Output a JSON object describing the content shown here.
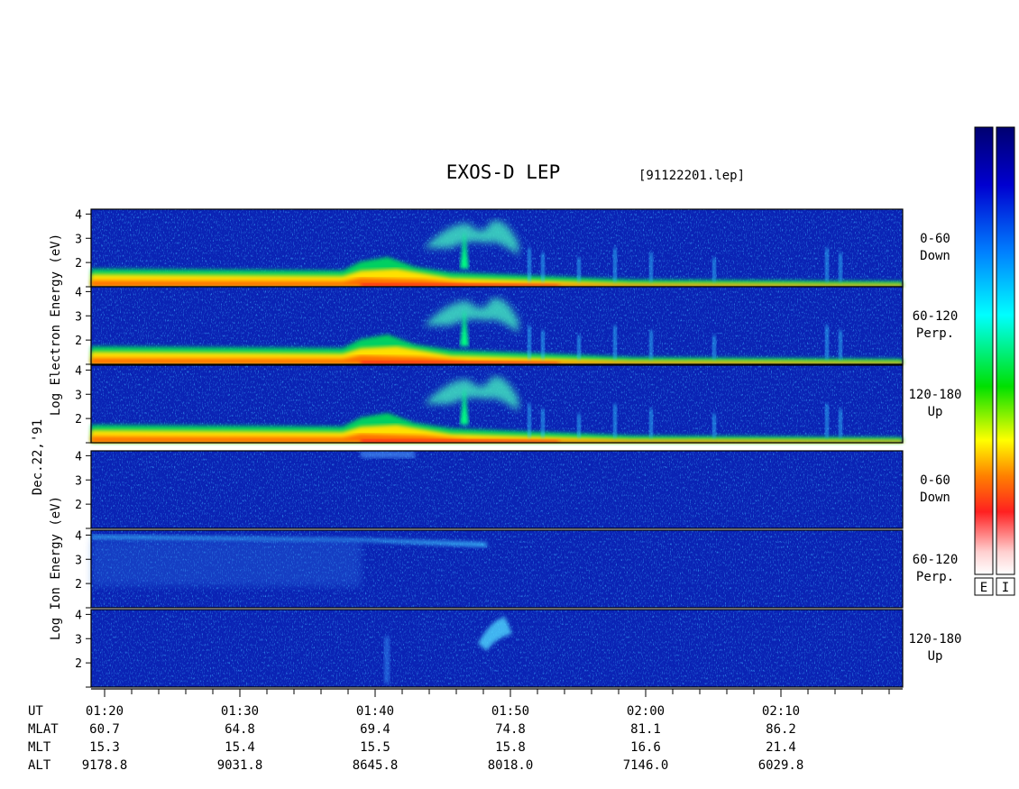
{
  "title": "EXOS-D LEP",
  "filename": "[91122201.lep]",
  "date_label": "Dec.22,'91",
  "colors": {
    "background": "#0a23b4",
    "colorbar_stops": [
      "#ffffff",
      "#ffd0d0",
      "#ff2020",
      "#ff8000",
      "#ffff00",
      "#00e000",
      "#00ffff",
      "#0080ff",
      "#0000d0",
      "#000070"
    ]
  },
  "colorbar": {
    "labels": [
      "E",
      "I"
    ]
  },
  "group_labels": {
    "electron": [
      "Log",
      "Electron",
      "Energy",
      "(eV)"
    ],
    "ion": [
      "Log",
      "Ion",
      "Energy",
      "(eV)"
    ]
  },
  "panels": [
    {
      "group": "electron",
      "species": "Electron",
      "pitch_angle": "0-60",
      "direction": "Down"
    },
    {
      "group": "electron",
      "species": "Electron",
      "pitch_angle": "60-120",
      "direction": "Perp."
    },
    {
      "group": "electron",
      "species": "Electron",
      "pitch_angle": "120-180",
      "direction": "Up"
    },
    {
      "group": "ion",
      "species": "Ion",
      "pitch_angle": "0-60",
      "direction": "Down"
    },
    {
      "group": "ion",
      "species": "Ion",
      "pitch_angle": "60-120",
      "direction": "Perp."
    },
    {
      "group": "ion",
      "species": "Ion",
      "pitch_angle": "120-180",
      "direction": "Up"
    }
  ],
  "axis_labels": {
    "rows": [
      "UT",
      "MLAT",
      "MLT",
      "ALT"
    ]
  },
  "chart_data": {
    "type": "heatmap",
    "title": "EXOS-D LEP",
    "x_axis": {
      "quantity": "UT",
      "range_minutes": [
        79,
        139
      ],
      "major_ticks": [
        {
          "ut": "01:20",
          "minute": 80,
          "MLAT": "60.7",
          "MLT": "15.3",
          "ALT": "9178.8"
        },
        {
          "ut": "01:30",
          "minute": 90,
          "MLAT": "64.8",
          "MLT": "15.4",
          "ALT": "9031.8"
        },
        {
          "ut": "01:40",
          "minute": 100,
          "MLAT": "69.4",
          "MLT": "15.5",
          "ALT": "8645.8"
        },
        {
          "ut": "01:50",
          "minute": 110,
          "MLAT": "74.8",
          "MLT": "15.8",
          "ALT": "8018.0"
        },
        {
          "ut": "02:00",
          "minute": 120,
          "MLAT": "81.1",
          "MLT": "16.6",
          "ALT": "7146.0"
        },
        {
          "ut": "02:10",
          "minute": 130,
          "MLAT": "86.2",
          "MLT": "21.4",
          "ALT": "6029.8"
        }
      ],
      "minor_tick_step_minutes": 2
    },
    "y_axis": {
      "quantity": "Log Energy (eV)",
      "range": [
        1,
        4.2
      ],
      "ticks": [
        2,
        3,
        4
      ]
    }
  }
}
